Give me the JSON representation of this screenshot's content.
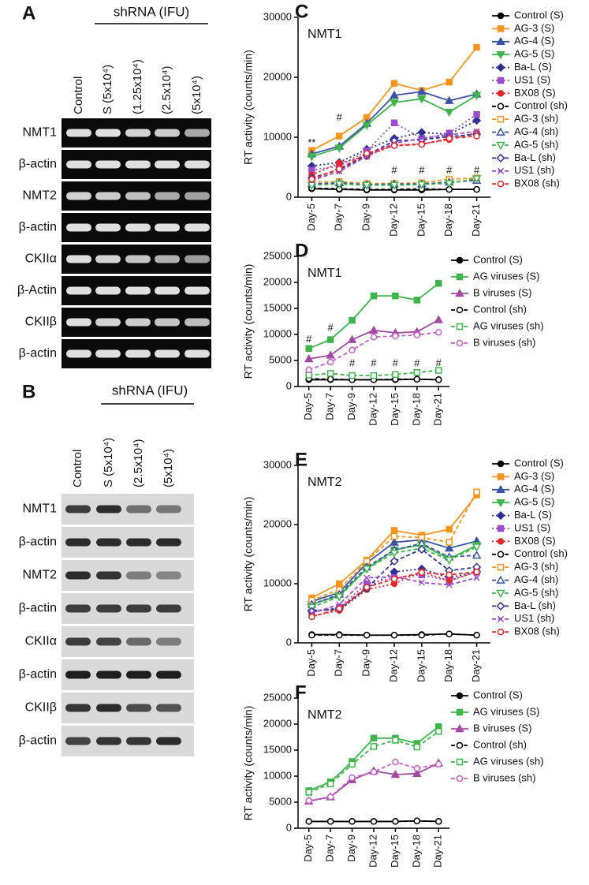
{
  "gels": [
    {
      "panel": "A",
      "header": "shRNA (IFU)",
      "lanes": [
        "Control",
        "S (5x10⁴)",
        "(1.25x10⁴)",
        "(2.5x10⁴)",
        "(5x10⁴)"
      ],
      "rows": [
        "NMT1",
        "β-actin",
        "NMT2",
        "β-actin",
        "CKIIα",
        "β-Actin",
        "CKIIβ",
        "β-actin"
      ]
    },
    {
      "panel": "B",
      "header": "shRNA (IFU)",
      "lanes": [
        "Control",
        "S (5x10⁴)",
        "(2.5x10⁴)",
        "(5x10⁴)"
      ],
      "rows": [
        "NMT1",
        "β-actin",
        "NMT2",
        "β-actin",
        "CKIIα",
        "β-actin",
        "CKIIβ",
        "β-actin"
      ]
    }
  ],
  "chart_data": [
    {
      "type": "line",
      "panel": "C",
      "title": "NMT1",
      "y_label": "RT activity (counts/min)",
      "categories": [
        "Day-5",
        "Day-7",
        "Day-9",
        "Day-12",
        "Day-15",
        "Day-18",
        "Day-21"
      ],
      "ylim": [
        0,
        30000
      ],
      "yticks": [
        0,
        10000,
        20000,
        30000
      ],
      "series": [
        {
          "name": "Control (S)",
          "color": "#000000",
          "line_style": "solid",
          "marker": "circle",
          "marker_filled": true,
          "values": [
            1400,
            1300,
            1200,
            1200,
            1200,
            1300,
            1300
          ]
        },
        {
          "name": "AG-3 (S)",
          "color": "#f7941d",
          "line_style": "solid",
          "marker": "square",
          "marker_filled": true,
          "values": [
            7800,
            10200,
            13300,
            19000,
            17800,
            19200,
            25000
          ]
        },
        {
          "name": "AG-4 (S)",
          "color": "#3a53a4",
          "line_style": "solid",
          "marker": "triangle",
          "marker_filled": true,
          "values": [
            7200,
            8500,
            12300,
            17000,
            17600,
            16100,
            17200
          ]
        },
        {
          "name": "AG-5 (S)",
          "color": "#3cb54a",
          "line_style": "solid",
          "marker": "triangle-down",
          "marker_filled": true,
          "values": [
            6800,
            8200,
            12000,
            15800,
            16400,
            14200,
            17000
          ]
        },
        {
          "name": "Ba-L (S)",
          "color": "#2e3192",
          "line_style": "dotted",
          "marker": "diamond",
          "marker_filled": true,
          "values": [
            5200,
            5800,
            8000,
            9800,
            10800,
            10500,
            12800
          ]
        },
        {
          "name": "US1 (S)",
          "color": "#9b4dca",
          "line_style": "dotted",
          "marker": "square",
          "marker_filled": true,
          "values": [
            4500,
            5200,
            7700,
            12400,
            9800,
            10700,
            13800
          ]
        },
        {
          "name": "BX08 (S)",
          "color": "#e8262b",
          "line_style": "dotted",
          "marker": "circle",
          "marker_filled": true,
          "values": [
            3700,
            5700,
            6800,
            8700,
            8900,
            9600,
            10800
          ]
        },
        {
          "name": "Control (sh)",
          "color": "#000000",
          "line_style": "dashed",
          "marker": "circle",
          "marker_filled": false,
          "values": [
            1500,
            1400,
            1300,
            1300,
            1400,
            1300,
            1300
          ]
        },
        {
          "name": "AG-3 (sh)",
          "color": "#f7941d",
          "line_style": "dashed",
          "marker": "square",
          "marker_filled": false,
          "values": [
            2500,
            2600,
            2300,
            2300,
            2400,
            3000,
            3200
          ]
        },
        {
          "name": "AG-4 (sh)",
          "color": "#3a53a4",
          "line_style": "dashed",
          "marker": "triangle",
          "marker_filled": false,
          "values": [
            2200,
            2400,
            2100,
            2200,
            2200,
            2500,
            2800
          ]
        },
        {
          "name": "AG-5 (sh)",
          "color": "#3cb54a",
          "line_style": "dashed",
          "marker": "triangle-down",
          "marker_filled": false,
          "values": [
            2000,
            2200,
            2000,
            2000,
            2100,
            2300,
            3100
          ]
        },
        {
          "name": "Ba-L (sh)",
          "color": "#2e3192",
          "line_style": "dashed",
          "marker": "diamond",
          "marker_filled": false,
          "values": [
            3200,
            4600,
            7000,
            9400,
            9600,
            10100,
            10500
          ]
        },
        {
          "name": "US1 (sh)",
          "color": "#9b4dca",
          "line_style": "dashed",
          "marker": "x",
          "marker_filled": false,
          "values": [
            2800,
            4300,
            6800,
            9000,
            9800,
            10400,
            11000
          ]
        },
        {
          "name": "BX08 (sh)",
          "color": "#e8262b",
          "line_style": "dashed",
          "marker": "circle",
          "marker_filled": false,
          "values": [
            3000,
            4700,
            7300,
            8600,
            8800,
            9800,
            10200
          ]
        }
      ],
      "annotations": [
        {
          "text": "**",
          "category": "Day-5",
          "y": 9000
        },
        {
          "text": "#",
          "category": "Day-7",
          "y": 13200
        },
        {
          "text": "#",
          "category": "Day-12",
          "y": 4400
        },
        {
          "text": "#",
          "category": "Day-15",
          "y": 4400
        },
        {
          "text": "#",
          "category": "Day-18",
          "y": 4400
        },
        {
          "text": "#",
          "category": "Day-21",
          "y": 4400
        }
      ]
    },
    {
      "type": "line",
      "panel": "D",
      "title": "NMT1",
      "y_label": "RT activity (counts/min)",
      "categories": [
        "Day-5",
        "Day-7",
        "Day-9",
        "Day-12",
        "Day-15",
        "Day-18",
        "Day-21"
      ],
      "ylim": [
        0,
        25000
      ],
      "yticks": [
        0,
        5000,
        10000,
        15000,
        20000,
        25000
      ],
      "series": [
        {
          "name": "Control (S)",
          "color": "#000000",
          "line_style": "solid",
          "marker": "circle",
          "marker_filled": true,
          "values": [
            1300,
            1300,
            1300,
            1300,
            1300,
            1400,
            1300
          ]
        },
        {
          "name": "AG viruses (S)",
          "color": "#3cb54a",
          "line_style": "solid",
          "marker": "square",
          "marker_filled": true,
          "values": [
            7300,
            9000,
            12700,
            17400,
            17400,
            16600,
            19800
          ]
        },
        {
          "name": "B viruses (S)",
          "color": "#a349a4",
          "line_style": "solid",
          "marker": "triangle",
          "marker_filled": true,
          "values": [
            5300,
            6000,
            9000,
            10800,
            10300,
            10500,
            12800
          ]
        },
        {
          "name": "Control (sh)",
          "color": "#000000",
          "line_style": "dashed",
          "marker": "circle",
          "marker_filled": false,
          "values": [
            1500,
            1400,
            1300,
            1300,
            1400,
            1400,
            1300
          ]
        },
        {
          "name": "AG viruses (sh)",
          "color": "#3cb54a",
          "line_style": "dashed",
          "marker": "square",
          "marker_filled": false,
          "values": [
            2200,
            2500,
            2100,
            2100,
            2300,
            2700,
            3100
          ]
        },
        {
          "name": "B viruses (sh)",
          "color": "#c85ec8",
          "line_style": "dashed",
          "marker": "circle",
          "marker_filled": false,
          "values": [
            3200,
            4700,
            7000,
            9500,
            9700,
            9900,
            10400
          ]
        }
      ],
      "annotations": [
        {
          "text": "#",
          "category": "Day-5",
          "y": 9000
        },
        {
          "text": "#",
          "category": "Day-7",
          "y": 11200
        },
        {
          "text": "#",
          "category": "Day-9",
          "y": 4400
        },
        {
          "text": "#",
          "category": "Day-12",
          "y": 4400
        },
        {
          "text": "#",
          "category": "Day-15",
          "y": 4400
        },
        {
          "text": "#",
          "category": "Day-18",
          "y": 4400
        },
        {
          "text": "#",
          "category": "Day-21",
          "y": 4400
        }
      ]
    },
    {
      "type": "line",
      "panel": "E",
      "title": "NMT2",
      "y_label": "RT activity (counts/min)",
      "categories": [
        "Day-5",
        "Day-7",
        "Day-9",
        "Day-12",
        "Day-15",
        "Day-18",
        "Day-21"
      ],
      "ylim": [
        0,
        30000
      ],
      "yticks": [
        0,
        10000,
        20000,
        30000
      ],
      "series": [
        {
          "name": "Control (S)",
          "color": "#000000",
          "line_style": "solid",
          "marker": "circle",
          "marker_filled": true,
          "values": [
            1400,
            1400,
            1300,
            1300,
            1400,
            1500,
            1300
          ]
        },
        {
          "name": "AG-3 (S)",
          "color": "#f7941d",
          "line_style": "solid",
          "marker": "square",
          "marker_filled": true,
          "values": [
            7600,
            10000,
            14000,
            19000,
            18200,
            19200,
            25000
          ]
        },
        {
          "name": "AG-4 (S)",
          "color": "#3a53a4",
          "line_style": "solid",
          "marker": "triangle",
          "marker_filled": true,
          "values": [
            7000,
            8500,
            13500,
            17000,
            17400,
            16000,
            17200
          ]
        },
        {
          "name": "AG-5 (S)",
          "color": "#3cb54a",
          "line_style": "solid",
          "marker": "triangle-down",
          "marker_filled": true,
          "values": [
            6500,
            8000,
            12500,
            15700,
            16600,
            14200,
            16500
          ]
        },
        {
          "name": "Ba-L (S)",
          "color": "#2e3192",
          "line_style": "dotted",
          "marker": "diamond",
          "marker_filled": true,
          "values": [
            5500,
            5600,
            9200,
            12000,
            12500,
            11000,
            12000
          ]
        },
        {
          "name": "US1 (S)",
          "color": "#9b4dca",
          "line_style": "dotted",
          "marker": "square",
          "marker_filled": true,
          "values": [
            5200,
            6000,
            10000,
            11000,
            11500,
            10500,
            12000
          ]
        },
        {
          "name": "BX08 (S)",
          "color": "#e8262b",
          "line_style": "dotted",
          "marker": "circle",
          "marker_filled": true,
          "values": [
            4500,
            5500,
            9000,
            10000,
            12000,
            10500,
            12000
          ]
        },
        {
          "name": "Control (sh)",
          "color": "#000000",
          "line_style": "dashed",
          "marker": "circle",
          "marker_filled": false,
          "values": [
            1300,
            1300,
            1300,
            1300,
            1300,
            1500,
            1300
          ]
        },
        {
          "name": "AG-3 (sh)",
          "color": "#f7941d",
          "line_style": "dashed",
          "marker": "square",
          "marker_filled": false,
          "values": [
            7200,
            9000,
            13800,
            18000,
            17800,
            17000,
            25500
          ]
        },
        {
          "name": "AG-4 (sh)",
          "color": "#3a53a4",
          "line_style": "dashed",
          "marker": "triangle",
          "marker_filled": false,
          "values": [
            6500,
            8200,
            12800,
            15700,
            16800,
            14500,
            14800
          ]
        },
        {
          "name": "AG-5 (sh)",
          "color": "#3cb54a",
          "line_style": "dashed",
          "marker": "triangle-down",
          "marker_filled": false,
          "values": [
            6000,
            7800,
            12500,
            15200,
            16000,
            14000,
            16200
          ]
        },
        {
          "name": "Ba-L (sh)",
          "color": "#2e3192",
          "line_style": "dashed",
          "marker": "diamond",
          "marker_filled": false,
          "values": [
            5300,
            5800,
            9200,
            13800,
            15800,
            12200,
            12800
          ]
        },
        {
          "name": "US1 (sh)",
          "color": "#9b4dca",
          "line_style": "dashed",
          "marker": "x",
          "marker_filled": false,
          "values": [
            5000,
            6500,
            11000,
            11200,
            10200,
            9800,
            11000
          ]
        },
        {
          "name": "BX08 (sh)",
          "color": "#e8262b",
          "line_style": "dashed",
          "marker": "circle",
          "marker_filled": false,
          "values": [
            4400,
            5800,
            9400,
            10800,
            11900,
            11500,
            12000
          ]
        }
      ]
    },
    {
      "type": "line",
      "panel": "F",
      "title": "NMT2",
      "y_label": "RT activity (counts/min)",
      "categories": [
        "Day-5",
        "Day-7",
        "Day-9",
        "Day-12",
        "Day-15",
        "Day-18",
        "Day-21"
      ],
      "ylim": [
        0,
        25000
      ],
      "yticks": [
        0,
        5000,
        10000,
        15000,
        20000,
        25000
      ],
      "series": [
        {
          "name": "Control (S)",
          "color": "#000000",
          "line_style": "solid",
          "marker": "circle",
          "marker_filled": true,
          "values": [
            1300,
            1300,
            1300,
            1300,
            1300,
            1400,
            1300
          ]
        },
        {
          "name": "AG viruses (S)",
          "color": "#3cb54a",
          "line_style": "solid",
          "marker": "square",
          "marker_filled": true,
          "values": [
            7200,
            8900,
            12800,
            17300,
            17300,
            16300,
            19500
          ]
        },
        {
          "name": "B viruses (S)",
          "color": "#a349a4",
          "line_style": "solid",
          "marker": "triangle",
          "marker_filled": true,
          "values": [
            5200,
            6000,
            9300,
            11000,
            10300,
            10500,
            12500
          ]
        },
        {
          "name": "Control (sh)",
          "color": "#000000",
          "line_style": "dashed",
          "marker": "circle",
          "marker_filled": false,
          "values": [
            1300,
            1300,
            1300,
            1300,
            1300,
            1400,
            1300
          ]
        },
        {
          "name": "AG viruses (sh)",
          "color": "#3cb54a",
          "line_style": "dashed",
          "marker": "square",
          "marker_filled": false,
          "values": [
            6900,
            8500,
            12300,
            15700,
            16900,
            15600,
            18600
          ]
        },
        {
          "name": "B viruses (sh)",
          "color": "#c85ec8",
          "line_style": "dashed",
          "marker": "circle",
          "marker_filled": false,
          "values": [
            5300,
            6000,
            9700,
            10800,
            12700,
            11500,
            12300
          ]
        }
      ]
    }
  ]
}
